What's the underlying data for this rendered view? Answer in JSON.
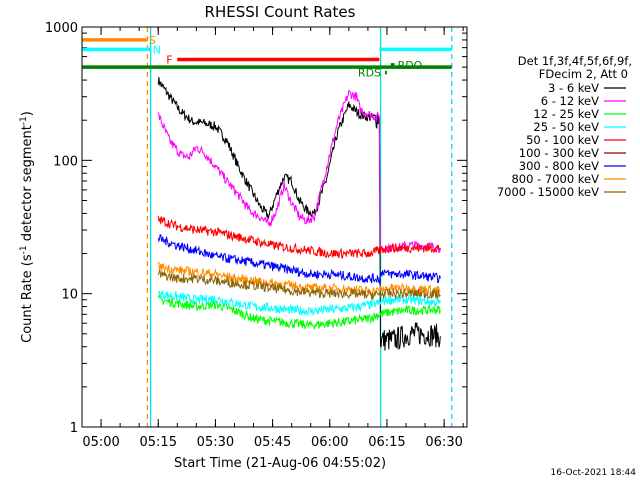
{
  "chart_data": {
    "type": "line",
    "title": "RHESSI Count Rates",
    "xlabel": "Start Time (21-Aug-06 04:55:02)",
    "ylabel_main": "Count Rate (s",
    "ylabel_sup1": "-1",
    "ylabel_mid": " detector segment",
    "ylabel_sup2": "-1",
    "ylabel_end": ")",
    "y_scale": "log",
    "ylim": [
      1,
      1000
    ],
    "xlim_minutes_after_0455": [
      0,
      101
    ],
    "x_ticks": [
      "05:00",
      "05:15",
      "05:30",
      "05:45",
      "06:00",
      "06:15",
      "06:30"
    ],
    "y_ticks": [
      "1",
      "10",
      "100",
      "1000"
    ],
    "grid": false,
    "legend_position": "right",
    "legend_header": [
      "Det 1f,3f,4f,5f,6f,9f,",
      "FDecim 2, Att 0"
    ],
    "footer": "16-Oct-2021 18:44",
    "vertical_lines": [
      {
        "time": "05:12:10",
        "style": "dashed",
        "color": "#ff8c00"
      },
      {
        "time": "05:13:00",
        "style": "solid",
        "color": "#00e0e0"
      },
      {
        "time": "06:13:20",
        "style": "solid",
        "color": "#00e0e0"
      },
      {
        "time": "06:32:00",
        "style": "dashed",
        "color": "#00e0e0"
      }
    ],
    "flag_bars": [
      {
        "label": "S",
        "start": "04:55",
        "end": "05:12",
        "value": 800,
        "color": "#ff8c00"
      },
      {
        "label": "N",
        "start": "04:55",
        "end": "05:13",
        "value": 680,
        "color": "#00ffff"
      },
      {
        "label": "F",
        "start": "05:20",
        "end": "06:13",
        "value": 570,
        "color": "#ff0000"
      },
      {
        "label": "",
        "start": "06:13",
        "end": "06:32",
        "value": 680,
        "color": "#00ffff"
      },
      {
        "label": "",
        "start": "04:55",
        "end": "06:32",
        "value": 500,
        "color": "#008000"
      },
      {
        "label": "RDO",
        "start": "06:16",
        "end": "06:17",
        "value": 520,
        "color": "#008000"
      },
      {
        "label": "RDS",
        "start": "06:14:30",
        "end": "06:15",
        "value": 455,
        "color": "#008000"
      }
    ],
    "series": [
      {
        "name": "3 - 6 keV",
        "color": "#000000",
        "points": [
          [
            20,
            400
          ],
          [
            23,
            300
          ],
          [
            26,
            230
          ],
          [
            29,
            195
          ],
          [
            32,
            190
          ],
          [
            35,
            180
          ],
          [
            38,
            140
          ],
          [
            41,
            90
          ],
          [
            44,
            62
          ],
          [
            47,
            44
          ],
          [
            49,
            38
          ],
          [
            51,
            55
          ],
          [
            53,
            75
          ],
          [
            55,
            70
          ],
          [
            57,
            50
          ],
          [
            59,
            42
          ],
          [
            61,
            40
          ],
          [
            64,
            70
          ],
          [
            67,
            160
          ],
          [
            70,
            260
          ],
          [
            73,
            220
          ],
          [
            75.5,
            210
          ],
          [
            78,
            210
          ],
          [
            78.3,
            4.5
          ],
          [
            82,
            4.5
          ],
          [
            86,
            5
          ],
          [
            90,
            5
          ],
          [
            94,
            4.8
          ]
        ]
      },
      {
        "name": "6 - 12 keV",
        "color": "#ff00ff",
        "points": [
          [
            20,
            220
          ],
          [
            23,
            140
          ],
          [
            26,
            110
          ],
          [
            28,
            105
          ],
          [
            30,
            125
          ],
          [
            32,
            115
          ],
          [
            35,
            90
          ],
          [
            38,
            70
          ],
          [
            41,
            55
          ],
          [
            44,
            42
          ],
          [
            47,
            37
          ],
          [
            49,
            33
          ],
          [
            51,
            42
          ],
          [
            53,
            65
          ],
          [
            55,
            48
          ],
          [
            57,
            38
          ],
          [
            59,
            35
          ],
          [
            61,
            38
          ],
          [
            64,
            85
          ],
          [
            67,
            190
          ],
          [
            70,
            320
          ],
          [
            72,
            300
          ],
          [
            73,
            240
          ],
          [
            75.5,
            220
          ],
          [
            78,
            210
          ],
          [
            78.3,
            22
          ],
          [
            82,
            22
          ],
          [
            86,
            23
          ],
          [
            90,
            23
          ],
          [
            94,
            22
          ]
        ]
      },
      {
        "name": "12 - 25 keV",
        "color": "#00ff00",
        "points": [
          [
            20,
            9
          ],
          [
            25,
            8.5
          ],
          [
            30,
            8
          ],
          [
            35,
            8.3
          ],
          [
            40,
            7.5
          ],
          [
            45,
            6.5
          ],
          [
            50,
            6.2
          ],
          [
            55,
            6
          ],
          [
            60,
            5.8
          ],
          [
            65,
            6
          ],
          [
            70,
            6.2
          ],
          [
            75,
            6.5
          ],
          [
            78,
            7
          ],
          [
            80,
            7.2
          ],
          [
            85,
            7.5
          ],
          [
            90,
            7.5
          ],
          [
            94,
            7.6
          ]
        ]
      },
      {
        "name": "25 - 50 keV",
        "color": "#00ffff",
        "points": [
          [
            20,
            10
          ],
          [
            25,
            9.5
          ],
          [
            30,
            9
          ],
          [
            35,
            9.2
          ],
          [
            40,
            8.5
          ],
          [
            45,
            8
          ],
          [
            50,
            7.8
          ],
          [
            55,
            7.5
          ],
          [
            60,
            7.4
          ],
          [
            65,
            7.6
          ],
          [
            70,
            7.8
          ],
          [
            75,
            8.2
          ],
          [
            78,
            8.5
          ],
          [
            80,
            9
          ],
          [
            85,
            9
          ],
          [
            90,
            8.8
          ],
          [
            94,
            8.5
          ]
        ]
      },
      {
        "name": "50 - 100 keV",
        "color": "#ff0000",
        "points": [
          [
            20,
            36
          ],
          [
            25,
            32
          ],
          [
            30,
            30
          ],
          [
            35,
            29
          ],
          [
            40,
            27
          ],
          [
            45,
            25
          ],
          [
            50,
            23
          ],
          [
            55,
            22
          ],
          [
            60,
            21
          ],
          [
            65,
            20
          ],
          [
            70,
            20
          ],
          [
            75,
            20
          ],
          [
            78,
            21
          ],
          [
            80,
            22
          ],
          [
            85,
            22
          ],
          [
            90,
            22
          ],
          [
            94,
            22
          ]
        ]
      },
      {
        "name": "100 - 300 keV",
        "color": "#8b0000",
        "points": []
      },
      {
        "name": "300 - 800 keV",
        "color": "#0000ff",
        "points": [
          [
            20,
            26
          ],
          [
            25,
            23
          ],
          [
            30,
            21
          ],
          [
            35,
            19
          ],
          [
            40,
            18
          ],
          [
            45,
            17
          ],
          [
            50,
            16
          ],
          [
            55,
            15
          ],
          [
            60,
            14
          ],
          [
            65,
            14
          ],
          [
            70,
            13.5
          ],
          [
            75,
            13
          ],
          [
            78,
            13
          ],
          [
            79,
            15
          ],
          [
            80,
            14
          ],
          [
            85,
            14
          ],
          [
            90,
            13.5
          ],
          [
            94,
            13
          ]
        ]
      },
      {
        "name": "800 - 7000 keV",
        "color": "#ff8c00",
        "points": [
          [
            20,
            16
          ],
          [
            25,
            15
          ],
          [
            30,
            14.5
          ],
          [
            35,
            14
          ],
          [
            40,
            13
          ],
          [
            45,
            12.5
          ],
          [
            50,
            12
          ],
          [
            55,
            11.5
          ],
          [
            60,
            11
          ],
          [
            65,
            11
          ],
          [
            70,
            10.8
          ],
          [
            75,
            10.5
          ],
          [
            78,
            10.5
          ],
          [
            80,
            11
          ],
          [
            85,
            11
          ],
          [
            90,
            10.8
          ],
          [
            94,
            10.5
          ]
        ]
      },
      {
        "name": "7000 - 15000 keV",
        "color": "#8b6508",
        "points": [
          [
            20,
            14
          ],
          [
            25,
            13
          ],
          [
            30,
            13
          ],
          [
            35,
            12.5
          ],
          [
            40,
            12
          ],
          [
            45,
            11.5
          ],
          [
            50,
            11
          ],
          [
            55,
            10.5
          ],
          [
            60,
            10.2
          ],
          [
            65,
            10
          ],
          [
            70,
            10
          ],
          [
            75,
            9.8
          ],
          [
            78,
            9.8
          ],
          [
            80,
            10
          ],
          [
            85,
            10
          ],
          [
            90,
            10
          ],
          [
            94,
            9.8
          ]
        ]
      }
    ]
  }
}
